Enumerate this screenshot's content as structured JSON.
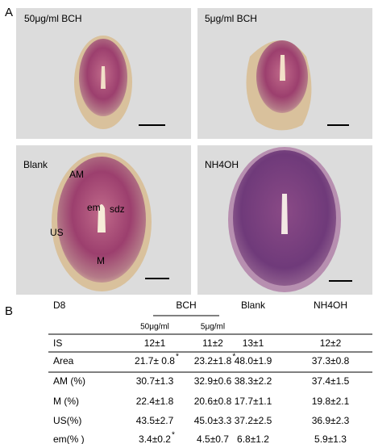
{
  "panel_a": {
    "label": "A",
    "images": [
      {
        "label": "50μg/ml BCH"
      },
      {
        "label": "5μg/ml BCH"
      },
      {
        "label": "Blank",
        "annotations": [
          "AM",
          "em",
          "sdz",
          "US",
          "M"
        ]
      },
      {
        "label": "NH4OH"
      }
    ]
  },
  "panel_b": {
    "label": "B",
    "table": {
      "corner": "D8",
      "group": "BCH",
      "columns": [
        "Blank",
        "NH4OH"
      ],
      "subcolumns": [
        "50μg/ml",
        "5μg/ml"
      ],
      "rows": [
        {
          "label": "IS",
          "cells": [
            "12±1",
            "11±2",
            "13±1",
            "12±2"
          ]
        },
        {
          "label": "Area",
          "cells": [
            {
              "text": "21.7± 0.8",
              "sup": "*"
            },
            {
              "text": "23.2±1.8",
              "sup": "*"
            },
            "48.0±1.9",
            "37.3±0.8"
          ]
        },
        {
          "label": "AM (%)",
          "cells": [
            "30.7±1.3",
            "32.9±0.6",
            "38.3±2.2",
            "37.4±1.5"
          ]
        },
        {
          "label": "M  (%)",
          "cells": [
            "22.4±1.8",
            "20.6±0.8",
            "17.7±1.1",
            "19.8±2.1"
          ]
        },
        {
          "label": "US(%)",
          "cells": [
            "43.5±2.7",
            "45.0±3.3",
            "37.2±2.5",
            "36.9±2.3"
          ]
        },
        {
          "label": "em(% )",
          "cells": [
            {
              "text": "3.4±0.2",
              "sup": "*"
            },
            "4.5±0.7",
            "6.8±1.2",
            "5.9±1.3"
          ]
        }
      ]
    }
  }
}
